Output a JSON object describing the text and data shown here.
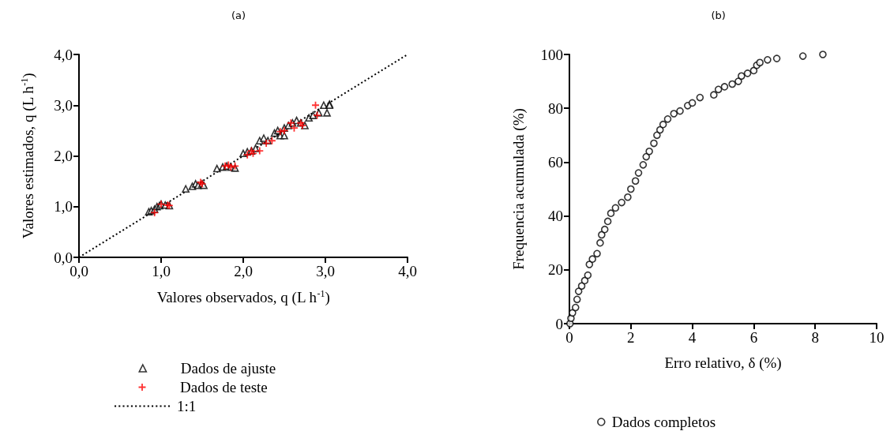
{
  "chart_data": [
    {
      "type": "scatter",
      "title": "(a)",
      "xlabel": "Valores observados, q (L h$^{-1}$)",
      "ylabel": "Valores estimados, q (L h$^{-1}$)",
      "xlim": [
        0,
        4
      ],
      "ylim": [
        0,
        4
      ],
      "xticks": [
        {
          "value": 0,
          "label": "0,0"
        },
        {
          "value": 1,
          "label": "1,0"
        },
        {
          "value": 2,
          "label": "2,0"
        },
        {
          "value": 3,
          "label": "3,0"
        },
        {
          "value": 4,
          "label": "4,0"
        }
      ],
      "yticks": [
        {
          "value": 0,
          "label": "0,0"
        },
        {
          "value": 1,
          "label": "1,0"
        },
        {
          "value": 2,
          "label": "2,0"
        },
        {
          "value": 3,
          "label": "3,0"
        },
        {
          "value": 4,
          "label": "4,0"
        }
      ],
      "grid": false,
      "legend": "bottom",
      "series": [
        {
          "name": "Dados de ajuste",
          "type": "scatter",
          "marker": "triangle",
          "color": "#000000",
          "x": [
            0.85,
            0.88,
            0.92,
            0.95,
            0.98,
            1.0,
            1.05,
            1.1,
            1.3,
            1.38,
            1.42,
            1.45,
            1.5,
            1.52,
            1.68,
            1.75,
            1.8,
            1.85,
            1.9,
            2.0,
            2.05,
            2.1,
            2.15,
            2.2,
            2.25,
            2.3,
            2.38,
            2.42,
            2.45,
            2.5,
            2.5,
            2.55,
            2.6,
            2.65,
            2.7,
            2.75,
            2.8,
            2.85,
            2.92,
            2.98,
            3.05,
            3.02,
            3.05
          ],
          "values": [
            0.9,
            0.92,
            0.95,
            1.0,
            1.02,
            1.05,
            1.03,
            1.02,
            1.35,
            1.4,
            1.45,
            1.42,
            1.45,
            1.42,
            1.75,
            1.78,
            1.8,
            1.78,
            1.76,
            2.05,
            2.08,
            2.1,
            2.15,
            2.3,
            2.35,
            2.3,
            2.45,
            2.5,
            2.4,
            2.55,
            2.4,
            2.6,
            2.65,
            2.7,
            2.65,
            2.6,
            2.75,
            2.8,
            2.85,
            3.0,
            3.02,
            2.85,
            3.0
          ]
        },
        {
          "name": "Dados de teste",
          "type": "scatter",
          "marker": "cross",
          "color": "#ff0000",
          "x": [
            0.92,
            1.0,
            1.08,
            1.1,
            1.48,
            1.5,
            1.78,
            1.82,
            1.85,
            1.9,
            2.05,
            2.1,
            2.12,
            2.2,
            2.28,
            2.35,
            2.45,
            2.5,
            2.58,
            2.62,
            2.7,
            2.72,
            2.88,
            2.9
          ],
          "values": [
            0.88,
            1.05,
            1.03,
            1.02,
            1.48,
            1.45,
            1.8,
            1.82,
            1.78,
            1.8,
            2.02,
            2.1,
            2.05,
            2.1,
            2.25,
            2.3,
            2.48,
            2.5,
            2.65,
            2.55,
            2.65,
            2.6,
            3.0,
            2.8
          ]
        },
        {
          "name": "1:1",
          "type": "line",
          "marker": "none",
          "line_style": "dotted",
          "color": "#000000",
          "x": [
            0,
            4
          ],
          "values": [
            0,
            4
          ]
        }
      ]
    },
    {
      "type": "scatter",
      "title": "(b)",
      "xlabel": "Erro relativo, δ (%)",
      "ylabel": "Frequencia acumulada (%)",
      "xlim": [
        0,
        10
      ],
      "ylim": [
        0,
        100
      ],
      "xticks": [
        0,
        2,
        4,
        6,
        8,
        10
      ],
      "yticks": [
        0,
        20,
        40,
        60,
        80,
        100
      ],
      "grid": false,
      "legend": "bottom",
      "series": [
        {
          "name": "Dados completos",
          "type": "scatter",
          "marker": "circle",
          "color": "#000000",
          "x": [
            0.02,
            0.05,
            0.1,
            0.2,
            0.25,
            0.3,
            0.4,
            0.5,
            0.6,
            0.65,
            0.75,
            0.9,
            1.0,
            1.05,
            1.15,
            1.25,
            1.35,
            1.5,
            1.7,
            1.9,
            2.0,
            2.15,
            2.25,
            2.4,
            2.5,
            2.6,
            2.75,
            2.85,
            2.95,
            3.05,
            3.2,
            3.4,
            3.6,
            3.85,
            4.0,
            4.25,
            4.7,
            4.85,
            5.05,
            5.3,
            5.5,
            5.6,
            5.8,
            6.0,
            6.1,
            6.2,
            6.45,
            6.75,
            7.6,
            8.25
          ],
          "values": [
            0,
            2,
            4,
            6,
            9,
            12,
            14,
            16,
            18,
            22,
            24,
            26,
            30,
            33,
            35,
            38,
            41,
            43,
            45,
            47,
            50,
            53,
            56,
            59,
            62,
            64,
            67,
            70,
            72,
            74,
            76,
            78,
            79,
            81,
            82,
            84,
            85,
            87,
            88,
            89,
            90,
            92,
            93,
            94,
            96,
            97,
            98,
            98.5,
            99.4,
            100
          ]
        }
      ]
    }
  ]
}
